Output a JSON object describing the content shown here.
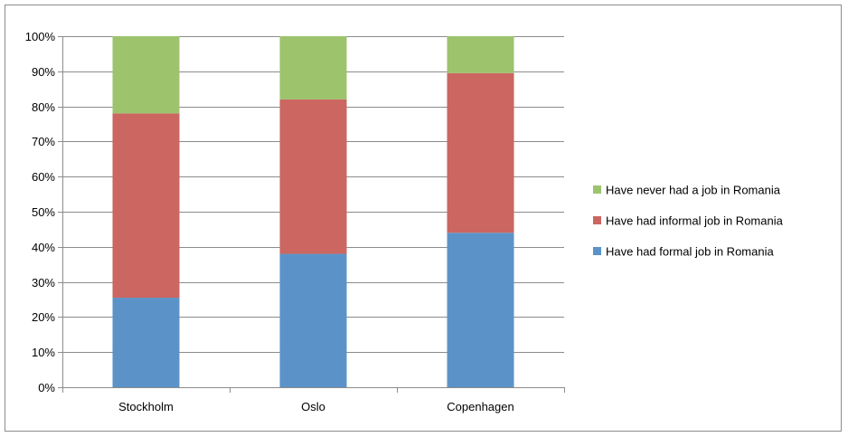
{
  "chart_data": {
    "type": "bar",
    "stacked": true,
    "percent_stacked": true,
    "categories": [
      "Stockholm",
      "Oslo",
      "Copenhagen"
    ],
    "series": [
      {
        "name": "Have had formal job in Romania",
        "values": [
          25.5,
          38,
          44
        ],
        "color": "#5b93c9"
      },
      {
        "name": "Have had informal job in Romania",
        "values": [
          52.5,
          44,
          45.5
        ],
        "color": "#cb6660"
      },
      {
        "name": "Have never had a job in Romania",
        "values": [
          22,
          18,
          10.5
        ],
        "color": "#9dc36d"
      }
    ],
    "y_ticks": [
      "0%",
      "10%",
      "20%",
      "30%",
      "40%",
      "50%",
      "60%",
      "70%",
      "80%",
      "90%",
      "100%"
    ],
    "ylim": [
      0,
      100
    ],
    "grid": true,
    "legend_position": "right",
    "legend_order": [
      2,
      1,
      0
    ]
  }
}
